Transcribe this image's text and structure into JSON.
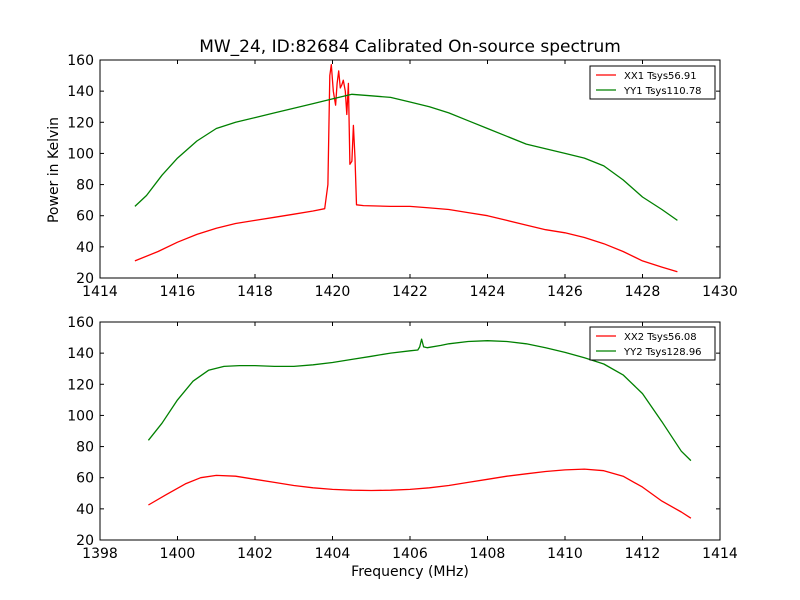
{
  "chart_data": [
    {
      "type": "line",
      "title": "MW_24, ID:82684 Calibrated On-source spectrum",
      "xlabel": "",
      "ylabel": "Power in Kelvin",
      "xlim": [
        1414,
        1430
      ],
      "ylim": [
        20,
        160
      ],
      "xticks": [
        1414,
        1416,
        1418,
        1420,
        1422,
        1424,
        1426,
        1428,
        1430
      ],
      "yticks": [
        20,
        40,
        60,
        80,
        100,
        120,
        140,
        160
      ],
      "legend_position": "top-right",
      "series": [
        {
          "name": "XX1 Tsys56.91",
          "color": "#ff0000",
          "points": [
            [
              1414.9,
              31
            ],
            [
              1415.5,
              37
            ],
            [
              1416,
              43
            ],
            [
              1416.5,
              48
            ],
            [
              1417,
              52
            ],
            [
              1417.5,
              55
            ],
            [
              1418,
              57
            ],
            [
              1418.5,
              59
            ],
            [
              1419,
              61
            ],
            [
              1419.5,
              63
            ],
            [
              1419.8,
              64.5
            ],
            [
              1419.88,
              80
            ],
            [
              1419.93,
              150
            ],
            [
              1419.97,
              157
            ],
            [
              1420.02,
              140
            ],
            [
              1420.08,
              131
            ],
            [
              1420.12,
              145
            ],
            [
              1420.16,
              153
            ],
            [
              1420.2,
              142
            ],
            [
              1420.24,
              144
            ],
            [
              1420.28,
              147
            ],
            [
              1420.33,
              140
            ],
            [
              1420.37,
              125
            ],
            [
              1420.41,
              145
            ],
            [
              1420.45,
              93
            ],
            [
              1420.5,
              95
            ],
            [
              1420.54,
              118
            ],
            [
              1420.58,
              97
            ],
            [
              1420.62,
              67
            ],
            [
              1420.8,
              66.5
            ],
            [
              1421.5,
              66
            ],
            [
              1422,
              66
            ],
            [
              1422.5,
              65
            ],
            [
              1423,
              64
            ],
            [
              1423.5,
              62
            ],
            [
              1424,
              60
            ],
            [
              1424.5,
              57
            ],
            [
              1425,
              54
            ],
            [
              1425.5,
              51
            ],
            [
              1426,
              49
            ],
            [
              1426.5,
              46
            ],
            [
              1427,
              42
            ],
            [
              1427.5,
              37
            ],
            [
              1428,
              31
            ],
            [
              1428.5,
              27
            ],
            [
              1428.9,
              24
            ]
          ]
        },
        {
          "name": "YY1 Tsys110.78",
          "color": "#008000",
          "points": [
            [
              1414.9,
              66
            ],
            [
              1415.2,
              73
            ],
            [
              1415.6,
              86
            ],
            [
              1416,
              97
            ],
            [
              1416.5,
              108
            ],
            [
              1417,
              116
            ],
            [
              1417.5,
              120
            ],
            [
              1418,
              123
            ],
            [
              1418.5,
              126
            ],
            [
              1419,
              129
            ],
            [
              1419.5,
              132
            ],
            [
              1420,
              135
            ],
            [
              1420.5,
              138
            ],
            [
              1421,
              137
            ],
            [
              1421.5,
              136
            ],
            [
              1422,
              133
            ],
            [
              1422.5,
              130
            ],
            [
              1423,
              126
            ],
            [
              1423.5,
              121
            ],
            [
              1424,
              116
            ],
            [
              1424.5,
              111
            ],
            [
              1425,
              106
            ],
            [
              1425.5,
              103
            ],
            [
              1426,
              100
            ],
            [
              1426.5,
              97
            ],
            [
              1427,
              92
            ],
            [
              1427.5,
              83
            ],
            [
              1428,
              72
            ],
            [
              1428.5,
              64
            ],
            [
              1428.9,
              57
            ]
          ]
        }
      ]
    },
    {
      "type": "line",
      "title": "",
      "xlabel": "Frequency (MHz)",
      "ylabel": "",
      "xlim": [
        1398,
        1414
      ],
      "ylim": [
        20,
        160
      ],
      "xticks": [
        1398,
        1400,
        1402,
        1404,
        1406,
        1408,
        1410,
        1412,
        1414
      ],
      "yticks": [
        20,
        40,
        60,
        80,
        100,
        120,
        140,
        160
      ],
      "legend_position": "top-right",
      "series": [
        {
          "name": "XX2 Tsys56.08",
          "color": "#ff0000",
          "points": [
            [
              1399.25,
              42.5
            ],
            [
              1399.7,
              49
            ],
            [
              1400.2,
              56
            ],
            [
              1400.6,
              60
            ],
            [
              1401,
              61.5
            ],
            [
              1401.5,
              61
            ],
            [
              1402,
              59
            ],
            [
              1402.5,
              57
            ],
            [
              1403,
              55
            ],
            [
              1403.5,
              53.5
            ],
            [
              1404,
              52.5
            ],
            [
              1404.5,
              52
            ],
            [
              1405,
              51.8
            ],
            [
              1405.5,
              52
            ],
            [
              1406,
              52.5
            ],
            [
              1406.5,
              53.5
            ],
            [
              1407,
              55
            ],
            [
              1407.5,
              57
            ],
            [
              1408,
              59
            ],
            [
              1408.5,
              61
            ],
            [
              1409,
              62.5
            ],
            [
              1409.5,
              64
            ],
            [
              1410,
              65
            ],
            [
              1410.5,
              65.5
            ],
            [
              1411,
              64.5
            ],
            [
              1411.5,
              61
            ],
            [
              1412,
              54
            ],
            [
              1412.5,
              45
            ],
            [
              1413,
              38
            ],
            [
              1413.25,
              34
            ]
          ]
        },
        {
          "name": "YY2 Tsys128.96",
          "color": "#008000",
          "points": [
            [
              1399.25,
              84
            ],
            [
              1399.6,
              95
            ],
            [
              1400,
              110
            ],
            [
              1400.4,
              122
            ],
            [
              1400.8,
              129
            ],
            [
              1401.2,
              131.5
            ],
            [
              1401.6,
              132
            ],
            [
              1402,
              132
            ],
            [
              1402.5,
              131.5
            ],
            [
              1403,
              131.5
            ],
            [
              1403.5,
              132.5
            ],
            [
              1404,
              134
            ],
            [
              1404.5,
              136
            ],
            [
              1405,
              138
            ],
            [
              1405.5,
              140
            ],
            [
              1406,
              141.5
            ],
            [
              1406.2,
              142
            ],
            [
              1406.25,
              144
            ],
            [
              1406.3,
              149
            ],
            [
              1406.35,
              144
            ],
            [
              1406.45,
              143.5
            ],
            [
              1406.8,
              145
            ],
            [
              1407,
              146
            ],
            [
              1407.5,
              147.5
            ],
            [
              1408,
              148
            ],
            [
              1408.5,
              147.5
            ],
            [
              1409,
              146
            ],
            [
              1409.5,
              143.5
            ],
            [
              1410,
              140.5
            ],
            [
              1410.5,
              137
            ],
            [
              1411,
              133
            ],
            [
              1411.5,
              126
            ],
            [
              1412,
              114
            ],
            [
              1412.5,
              96
            ],
            [
              1413,
              77
            ],
            [
              1413.25,
              71
            ]
          ]
        }
      ]
    }
  ]
}
